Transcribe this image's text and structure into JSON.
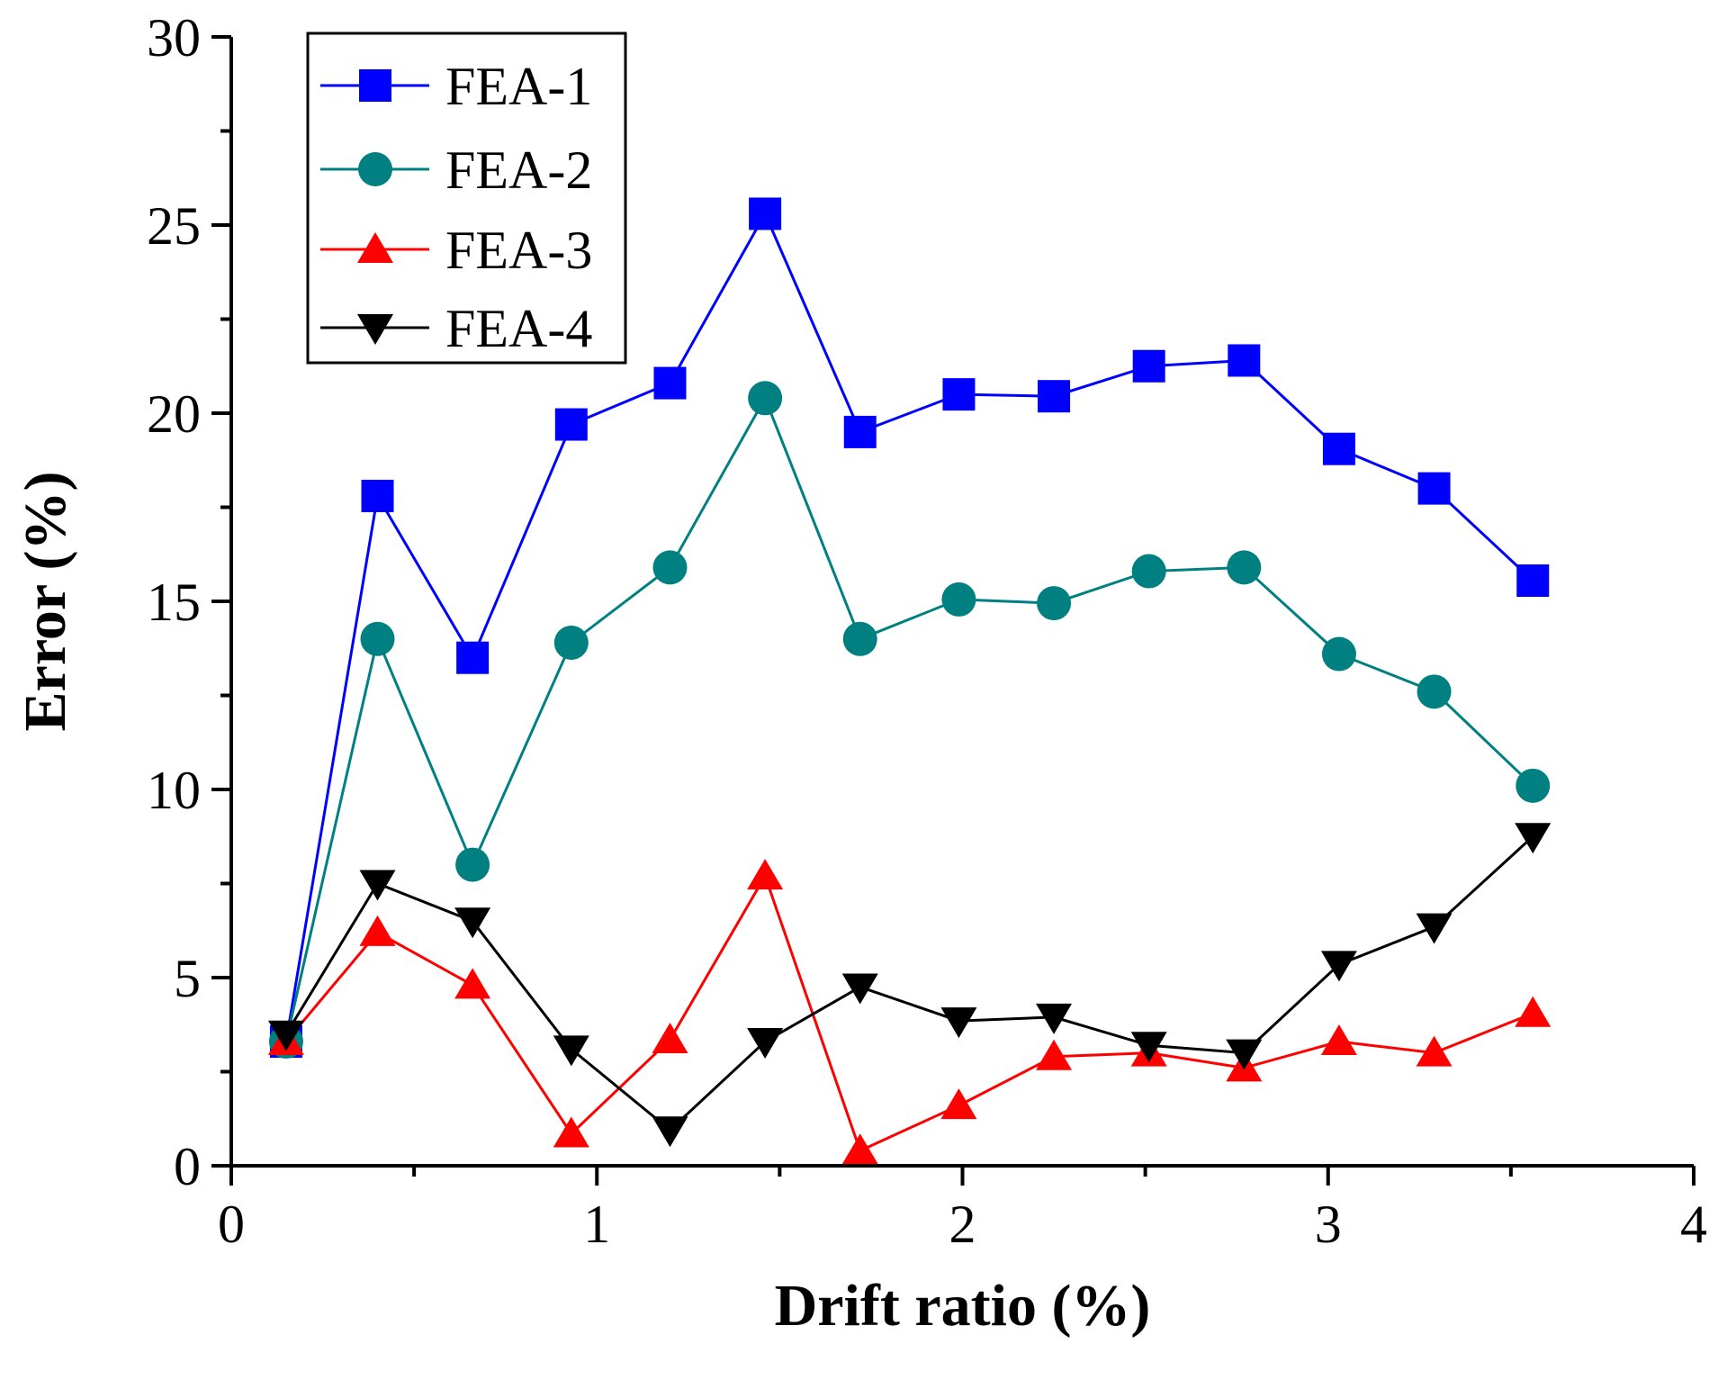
{
  "chart_data": {
    "type": "line",
    "title": "",
    "xlabel": "Drift ratio (%)",
    "ylabel": "Error (%)",
    "xlim": [
      0,
      4
    ],
    "ylim": [
      0,
      30
    ],
    "xticks": [
      0,
      1,
      2,
      3,
      4
    ],
    "yticks": [
      0,
      5,
      10,
      15,
      20,
      25,
      30
    ],
    "xtick_labels": [
      "0",
      "1",
      "2",
      "3",
      "4"
    ],
    "ytick_labels": [
      "0",
      "5",
      "10",
      "15",
      "20",
      "25",
      "30"
    ],
    "x": [
      0.15,
      0.4,
      0.66,
      0.93,
      1.2,
      1.46,
      1.72,
      1.99,
      2.25,
      2.51,
      2.77,
      3.03,
      3.29,
      3.56
    ],
    "grid": false,
    "legend_position": "top-left",
    "series": [
      {
        "name": "FEA-1",
        "color": "#0000ff",
        "marker": "square",
        "values": [
          3.3,
          17.8,
          13.5,
          19.7,
          20.8,
          25.3,
          19.5,
          20.5,
          20.45,
          21.25,
          21.4,
          19.05,
          18.0,
          15.55
        ]
      },
      {
        "name": "FEA-2",
        "color": "#008080",
        "marker": "circle",
        "values": [
          3.3,
          14.0,
          8.0,
          13.9,
          15.9,
          20.4,
          14.0,
          15.05,
          14.95,
          15.8,
          15.9,
          13.6,
          12.6,
          10.1
        ]
      },
      {
        "name": "FEA-3",
        "color": "#ff0000",
        "marker": "triangle-up",
        "values": [
          3.3,
          6.2,
          4.8,
          0.85,
          3.35,
          7.7,
          0.4,
          1.6,
          2.9,
          3.0,
          2.6,
          3.3,
          3.0,
          4.05
        ]
      },
      {
        "name": "FEA-4",
        "color": "#000000",
        "marker": "triangle-down",
        "values": [
          3.5,
          7.5,
          6.5,
          3.1,
          0.95,
          3.3,
          4.75,
          3.85,
          3.95,
          3.2,
          3.0,
          5.35,
          6.35,
          8.75
        ]
      }
    ]
  }
}
